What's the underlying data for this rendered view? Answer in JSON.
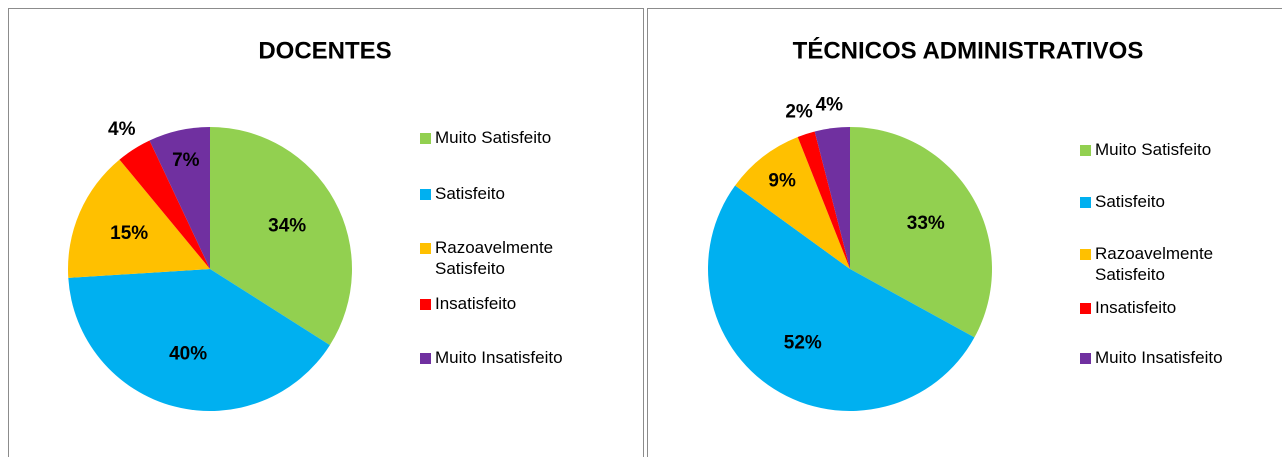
{
  "chart_data": [
    {
      "type": "pie",
      "title": "DOCENTES",
      "categories": [
        "Muito Satisfeito",
        "Satisfeito",
        "Razoavelmente Satisfeito",
        "Insatisfeito",
        "Muito Insatisfeito"
      ],
      "values": [
        34,
        40,
        15,
        4,
        7
      ],
      "value_labels": [
        "34%",
        "40%",
        "15%",
        "4%",
        "7%"
      ],
      "colors": [
        "#92d050",
        "#00b0f0",
        "#ffc000",
        "#ff0000",
        "#7030a0"
      ],
      "legend": "right"
    },
    {
      "type": "pie",
      "title": "TÉCNICOS ADMINISTRATIVOS",
      "categories": [
        "Muito Satisfeito",
        "Satisfeito",
        "Razoavelmente Satisfeito",
        "Insatisfeito",
        "Muito Insatisfeito"
      ],
      "values": [
        33,
        52,
        9,
        2,
        4
      ],
      "value_labels": [
        "33%",
        "52%",
        "9%",
        "2%",
        "4%"
      ],
      "colors": [
        "#92d050",
        "#00b0f0",
        "#ffc000",
        "#ff0000",
        "#7030a0"
      ],
      "legend": "right"
    }
  ]
}
